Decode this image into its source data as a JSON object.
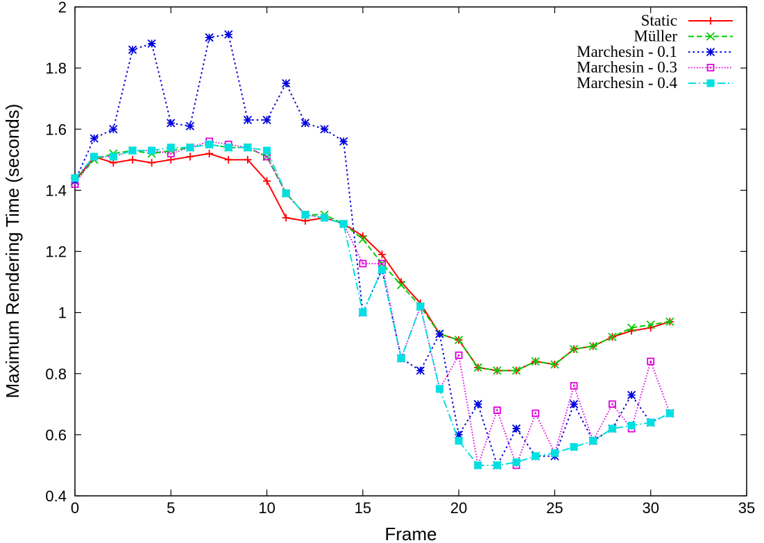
{
  "chart_data": {
    "type": "line",
    "title": "",
    "xlabel": "Frame",
    "ylabel": "Maximum Rendering Time (seconds)",
    "xlim": [
      0,
      35
    ],
    "ylim": [
      0.4,
      2
    ],
    "xticks": [
      0,
      5,
      10,
      15,
      20,
      25,
      30,
      35
    ],
    "yticks": [
      0.4,
      0.6,
      0.8,
      1,
      1.2,
      1.4,
      1.6,
      1.8,
      2
    ],
    "xtick_labels": [
      "0",
      "5",
      "10",
      "15",
      "20",
      "25",
      "30",
      "35"
    ],
    "ytick_labels": [
      "0.4",
      "0.6",
      "0.8",
      "1",
      "1.2",
      "1.4",
      "1.6",
      "1.8",
      "2"
    ],
    "grid": false,
    "legend_position": "top-right",
    "x": [
      0,
      1,
      2,
      3,
      4,
      5,
      6,
      7,
      8,
      9,
      10,
      11,
      12,
      13,
      14,
      15,
      16,
      17,
      18,
      19,
      20,
      21,
      22,
      23,
      24,
      25,
      26,
      27,
      28,
      29,
      30,
      31
    ],
    "series": [
      {
        "name": "Static",
        "color": "#ff0000",
        "dash": "solid",
        "marker": "plus",
        "values": [
          1.43,
          1.51,
          1.49,
          1.5,
          1.49,
          1.5,
          1.51,
          1.52,
          1.5,
          1.5,
          1.43,
          1.31,
          1.3,
          1.31,
          1.29,
          1.25,
          1.19,
          1.1,
          1.03,
          0.93,
          0.91,
          0.82,
          0.81,
          0.81,
          0.84,
          0.83,
          0.88,
          0.89,
          0.92,
          0.94,
          0.95,
          0.97
        ]
      },
      {
        "name": "Müller",
        "color": "#00cc00",
        "dash": "dashed",
        "marker": "x",
        "values": [
          1.43,
          1.5,
          1.52,
          1.53,
          1.52,
          1.53,
          1.54,
          1.55,
          1.54,
          1.54,
          1.51,
          1.39,
          1.32,
          1.32,
          1.29,
          1.24,
          1.16,
          1.09,
          1.02,
          0.93,
          0.91,
          0.82,
          0.81,
          0.81,
          0.84,
          0.83,
          0.88,
          0.89,
          0.92,
          0.95,
          0.96,
          0.97
        ]
      },
      {
        "name": "Marchesin - 0.1",
        "color": "#0000dd",
        "dash": "dotted",
        "marker": "star",
        "values": [
          1.43,
          1.57,
          1.6,
          1.86,
          1.88,
          1.62,
          1.61,
          1.9,
          1.91,
          1.63,
          1.63,
          1.75,
          1.62,
          1.6,
          1.56,
          1.0,
          1.14,
          0.85,
          0.81,
          0.93,
          0.6,
          0.7,
          0.5,
          0.62,
          0.53,
          0.53,
          0.7,
          0.58,
          0.62,
          0.73,
          0.64,
          0.67
        ]
      },
      {
        "name": "Marchesin - 0.3",
        "color": "#e000e0",
        "dash": "densedot",
        "marker": "open-square",
        "values": [
          1.42,
          1.51,
          1.51,
          1.53,
          1.53,
          1.52,
          1.54,
          1.56,
          1.55,
          1.54,
          1.51,
          1.39,
          1.32,
          1.31,
          1.29,
          1.16,
          1.16,
          0.85,
          1.02,
          0.75,
          0.86,
          0.5,
          0.68,
          0.5,
          0.67,
          0.54,
          0.76,
          0.58,
          0.7,
          0.62,
          0.84,
          0.67
        ]
      },
      {
        "name": "Marchesin - 0.4",
        "color": "#00e0e0",
        "dash": "dashdot",
        "marker": "filled-square",
        "values": [
          1.44,
          1.51,
          1.51,
          1.53,
          1.53,
          1.54,
          1.54,
          1.55,
          1.54,
          1.54,
          1.53,
          1.39,
          1.32,
          1.31,
          1.29,
          1.0,
          1.14,
          0.85,
          1.02,
          0.75,
          0.58,
          0.5,
          0.5,
          0.51,
          0.53,
          0.54,
          0.56,
          0.58,
          0.62,
          0.63,
          0.64,
          0.67
        ]
      }
    ]
  }
}
